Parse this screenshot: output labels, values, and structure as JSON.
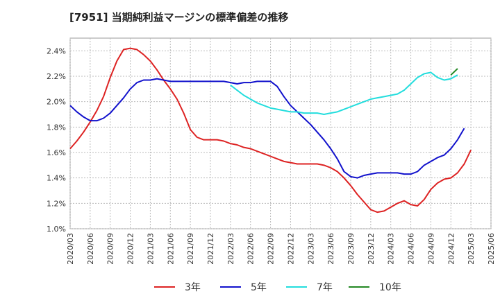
{
  "chart_data": {
    "type": "line",
    "title": "[7951]  当期純利益マージンの標準偏差の推移",
    "xlabel": "",
    "ylabel": "",
    "ylim": [
      1.0,
      2.5
    ],
    "y_ticks": [
      "1.0%",
      "1.2%",
      "1.4%",
      "1.6%",
      "1.8%",
      "2.0%",
      "2.2%",
      "2.4%"
    ],
    "x_ticks": [
      "2020/03",
      "2020/06",
      "2020/09",
      "2020/12",
      "2021/03",
      "2021/06",
      "2021/09",
      "2021/12",
      "2022/03",
      "2022/06",
      "2022/09",
      "2022/12",
      "2023/03",
      "2023/06",
      "2023/09",
      "2023/12",
      "2024/03",
      "2024/06",
      "2024/09",
      "2024/12",
      "2025/03",
      "2025/06"
    ],
    "grid": true,
    "legend_position": "bottom",
    "series": [
      {
        "name": "3年",
        "color": "#dd2222",
        "start": "2020/03",
        "values": [
          1.63,
          1.69,
          1.76,
          1.84,
          1.93,
          2.04,
          2.19,
          2.32,
          2.41,
          2.42,
          2.41,
          2.37,
          2.32,
          2.25,
          2.17,
          2.1,
          2.02,
          1.91,
          1.78,
          1.72,
          1.7,
          1.7,
          1.7,
          1.69,
          1.67,
          1.66,
          1.64,
          1.63,
          1.61,
          1.59,
          1.57,
          1.55,
          1.53,
          1.52,
          1.51,
          1.51,
          1.51,
          1.51,
          1.5,
          1.48,
          1.45,
          1.4,
          1.34,
          1.27,
          1.21,
          1.15,
          1.13,
          1.14,
          1.17,
          1.2,
          1.22,
          1.19,
          1.18,
          1.23,
          1.31,
          1.36,
          1.39,
          1.4,
          1.44,
          1.51,
          1.62
        ]
      },
      {
        "name": "5年",
        "color": "#1111cc",
        "start": "2020/03",
        "values": [
          1.97,
          1.92,
          1.88,
          1.85,
          1.85,
          1.87,
          1.91,
          1.97,
          2.03,
          2.1,
          2.15,
          2.17,
          2.17,
          2.18,
          2.17,
          2.16,
          2.16,
          2.16,
          2.16,
          2.16,
          2.16,
          2.16,
          2.16,
          2.16,
          2.15,
          2.14,
          2.15,
          2.15,
          2.16,
          2.16,
          2.16,
          2.12,
          2.04,
          1.97,
          1.92,
          1.87,
          1.82,
          1.76,
          1.7,
          1.63,
          1.55,
          1.45,
          1.41,
          1.4,
          1.42,
          1.43,
          1.44,
          1.44,
          1.44,
          1.44,
          1.43,
          1.43,
          1.45,
          1.5,
          1.53,
          1.56,
          1.58,
          1.63,
          1.7,
          1.79
        ]
      },
      {
        "name": "7年",
        "color": "#22dddd",
        "start": "2022/03",
        "values": [
          2.13,
          2.09,
          2.05,
          2.02,
          1.99,
          1.97,
          1.95,
          1.94,
          1.93,
          1.92,
          1.92,
          1.91,
          1.91,
          1.91,
          1.9,
          1.91,
          1.92,
          1.94,
          1.96,
          1.98,
          2.0,
          2.02,
          2.03,
          2.04,
          2.05,
          2.06,
          2.09,
          2.14,
          2.19,
          2.22,
          2.23,
          2.19,
          2.17,
          2.18,
          2.21
        ]
      },
      {
        "name": "10年",
        "color": "#228822",
        "start": "2024/12",
        "values": [
          2.21,
          2.26
        ]
      }
    ]
  }
}
